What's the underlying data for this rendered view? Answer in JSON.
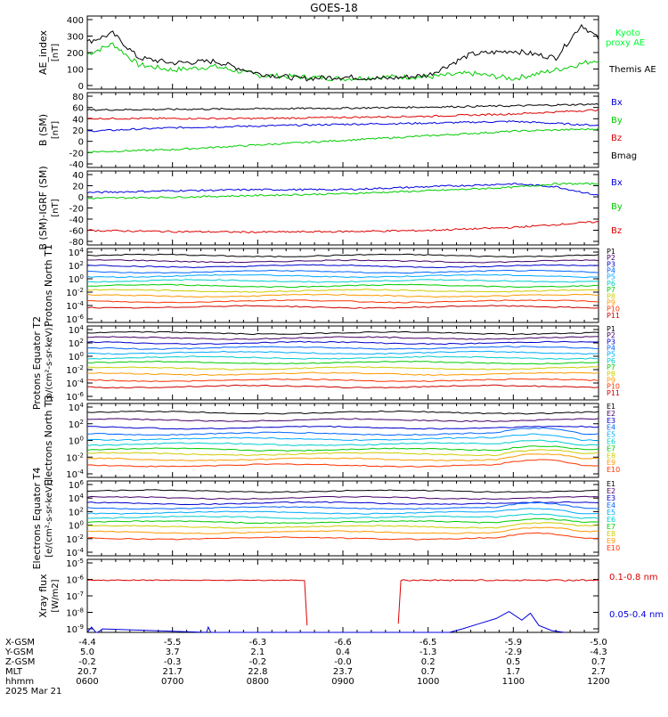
{
  "title": "GOES-18",
  "colors": {
    "black": "#000000",
    "green": "#00cc00",
    "lightgreen": "#00ff33",
    "blue": "#0000dd",
    "red": "#dd0000",
    "p_colors": [
      "#000000",
      "#440066",
      "#0000cc",
      "#0066ff",
      "#00aaff",
      "#00cccc",
      "#00cc00",
      "#cccc00",
      "#ff9900",
      "#ff3300",
      "#cc0000"
    ]
  },
  "chart_data": [
    {
      "type": "line",
      "ylabel": "AE_index [nT]",
      "yticks": [
        "400",
        "300",
        "200",
        "100",
        "0"
      ],
      "ylim": [
        0,
        420
      ],
      "series": [
        {
          "name": "Kyoto proxy AE",
          "color": "#00cc00",
          "x": [
            0,
            0.3,
            0.6,
            1,
            1.5,
            2,
            2.5,
            3,
            3.5,
            4,
            4.5,
            5,
            5.5,
            6
          ],
          "y": [
            200,
            260,
            140,
            110,
            130,
            80,
            70,
            60,
            70,
            70,
            90,
            60,
            110,
            170
          ]
        },
        {
          "name": "Themis AE",
          "color": "#000000",
          "x": [
            0,
            0.3,
            0.6,
            1,
            1.5,
            2,
            2.5,
            3,
            3.5,
            4,
            4.5,
            5,
            5.5,
            5.8,
            6
          ],
          "y": [
            270,
            320,
            180,
            150,
            160,
            90,
            60,
            70,
            60,
            80,
            200,
            220,
            180,
            370,
            290
          ]
        }
      ]
    },
    {
      "type": "line",
      "ylabel": "B (SM) [nT]",
      "yticks": [
        "80",
        "60",
        "40",
        "20",
        "0",
        "-20",
        "-40"
      ],
      "ylim": [
        -45,
        85
      ],
      "series": [
        {
          "name": "Bx",
          "color": "#0000dd",
          "x": [
            0,
            1,
            2,
            3,
            4,
            5,
            6
          ],
          "y": [
            18,
            24,
            27,
            30,
            32,
            35,
            28
          ]
        },
        {
          "name": "By",
          "color": "#00cc00",
          "x": [
            0,
            1,
            2,
            3,
            4,
            5,
            6
          ],
          "y": [
            -18,
            -14,
            -6,
            2,
            10,
            18,
            22
          ]
        },
        {
          "name": "Bz",
          "color": "#dd0000",
          "x": [
            0,
            1,
            2,
            3,
            4,
            5,
            6
          ],
          "y": [
            40,
            40,
            40,
            42,
            44,
            48,
            55
          ]
        },
        {
          "name": "Bmag",
          "color": "#000000",
          "x": [
            0,
            1,
            2,
            3,
            4,
            5,
            6
          ],
          "y": [
            55,
            56,
            57,
            58,
            60,
            62,
            65
          ]
        }
      ]
    },
    {
      "type": "line",
      "ylabel": "B (SM)-IGRF (SM) [nT]",
      "yticks": [
        "40",
        "20",
        "0",
        "-20",
        "-40",
        "-60",
        "-80"
      ],
      "ylim": [
        -85,
        42
      ],
      "series": [
        {
          "name": "Bx",
          "color": "#0000dd",
          "x": [
            0,
            1,
            2,
            3,
            4,
            5,
            5.5,
            6
          ],
          "y": [
            5,
            8,
            10,
            10,
            15,
            20,
            15,
            0
          ]
        },
        {
          "name": "By",
          "color": "#00cc00",
          "x": [
            0,
            1,
            2,
            3,
            4,
            5,
            5.5,
            6
          ],
          "y": [
            -5,
            -3,
            0,
            3,
            8,
            14,
            20,
            20
          ]
        },
        {
          "name": "Bz",
          "color": "#dd0000",
          "x": [
            0,
            1,
            2,
            3,
            4,
            5,
            5.5,
            6
          ],
          "y": [
            -60,
            -62,
            -63,
            -62,
            -60,
            -55,
            -50,
            -45
          ]
        }
      ]
    },
    {
      "type": "line",
      "log": true,
      "ylabel": "Protons North T1",
      "yticks": [
        "10^4",
        "10^2",
        "10^0",
        "10^-2",
        "10^-4",
        "10^-6"
      ],
      "ylim": [
        -6.5,
        4
      ],
      "legend": [
        "P1",
        "P2",
        "P3",
        "P4",
        "P5",
        "P6",
        "P7",
        "P8",
        "P9",
        "P10",
        "P11"
      ],
      "levels": [
        3.0,
        2.2,
        1.5,
        0.7,
        0.1,
        -0.6,
        -1.3,
        -2.0,
        -2.7,
        -3.5,
        -4.3
      ]
    },
    {
      "type": "line",
      "log": true,
      "ylabel": "Protons Equator T2",
      "ylabel2": "[p/(cm²-s-sr-keV)]",
      "yticks": [
        "10^4",
        "10^2",
        "10^0",
        "10^-2",
        "10^-4",
        "10^-6"
      ],
      "ylim": [
        -6.5,
        4
      ],
      "legend": [
        "P1",
        "P2",
        "P3",
        "P4",
        "P5",
        "P6",
        "P7",
        "P8",
        "P9",
        "P10",
        "P11"
      ],
      "levels": [
        3.0,
        2.3,
        1.6,
        0.9,
        0.2,
        -0.5,
        -1.2,
        -2.0,
        -2.8,
        -3.7,
        -4.6
      ]
    },
    {
      "type": "line",
      "log": true,
      "ylabel": "Electrons North T3",
      "yticks": [
        "10^4",
        "10^2",
        "10^0",
        "10^-2",
        "10^-4"
      ],
      "ylim": [
        -4.6,
        5.2
      ],
      "legend": [
        "E1",
        "E2",
        "E3",
        "E4",
        "E5",
        "E6",
        "E7",
        "E8",
        "E9",
        "E10"
      ],
      "levels": [
        4.0,
        3.0,
        2.0,
        1.2,
        0.5,
        -0.2,
        -0.9,
        -1.5,
        -2.2,
        -3.0
      ]
    },
    {
      "type": "line",
      "log": true,
      "ylabel": "Electrons Equator T4",
      "ylabel2": "[e/(cm²-s-sr-keV)]",
      "yticks": [
        "10^6",
        "10^4",
        "10^2",
        "10^0",
        "10^-2",
        "10^-4"
      ],
      "ylim": [
        -4.6,
        6.5
      ],
      "legend": [
        "E1",
        "E2",
        "E3",
        "E4",
        "E5",
        "E6",
        "E7",
        "E8",
        "E9",
        "E10"
      ],
      "levels": [
        5.0,
        4.0,
        3.2,
        2.5,
        1.8,
        1.1,
        0.4,
        -0.3,
        -1.1,
        -2.0
      ]
    },
    {
      "type": "line",
      "log": true,
      "ylabel": "Xray flux [W/m2]",
      "yticks": [
        "10^-5",
        "10^-6",
        "10^-7",
        "10^-8",
        "10^-9"
      ],
      "ylim": [
        -9.1,
        -4.9
      ],
      "series": [
        {
          "name": "0.1-0.8 nm",
          "color": "#dd0000"
        },
        {
          "name": "0.05-0.4 nm",
          "color": "#0000dd"
        }
      ]
    }
  ],
  "x_axis": {
    "row_labels": [
      "X-GSM",
      "Y-GSM",
      "Z-GSM",
      "MLT",
      "hhmm",
      "2025 Mar 21"
    ],
    "columns": [
      {
        "x": "-4.4",
        "y": "5.0",
        "z": "-0.2",
        "mlt": "20.7",
        "t": "0600"
      },
      {
        "x": "-5.5",
        "y": "3.7",
        "z": "-0.3",
        "mlt": "21.7",
        "t": "0700"
      },
      {
        "x": "-6.3",
        "y": "2.1",
        "z": "-0.2",
        "mlt": "22.8",
        "t": "0800"
      },
      {
        "x": "-6.6",
        "y": "0.4",
        "z": "-0.0",
        "mlt": "23.7",
        "t": "0900"
      },
      {
        "x": "-6.5",
        "y": "-1.3",
        "z": "0.2",
        "mlt": "0.7",
        "t": "1000"
      },
      {
        "x": "-5.9",
        "y": "-2.9",
        "z": "0.5",
        "mlt": "1.7",
        "t": "1100"
      },
      {
        "x": "-5.0",
        "y": "-4.3",
        "z": "0.7",
        "mlt": "2.7",
        "t": "1200"
      }
    ]
  },
  "right_labels": {
    "ae": [
      "Kyoto",
      "proxy AE",
      "Themis AE"
    ],
    "b": [
      "Bx",
      "By",
      "Bz",
      "Bmag"
    ],
    "bigrf": [
      "Bx",
      "By",
      "Bz"
    ],
    "xray": [
      "0.1-0.8 nm",
      "0.05-0.4 nm"
    ]
  }
}
